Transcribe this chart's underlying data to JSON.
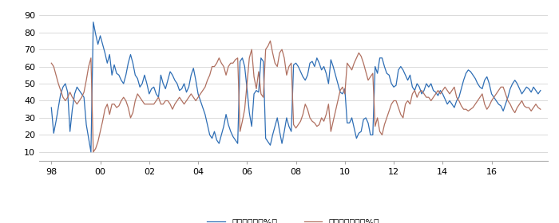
{
  "xlim_start": 1997.5,
  "xlim_end": 2018.3,
  "ylim": [
    5,
    95
  ],
  "yticks": [
    10,
    20,
    30,
    40,
    50,
    60,
    70,
    80,
    90
  ],
  "xtick_years": [
    1998,
    2000,
    2002,
    2004,
    2006,
    2008,
    2010,
    2012,
    2014,
    2016
  ],
  "xtick_labels": [
    "98",
    "00",
    "02",
    "04",
    "06",
    "08",
    "10",
    "12",
    "14",
    "16"
  ],
  "line1_color": "#2e6eb5",
  "line2_color": "#b07060",
  "line1_label": "内閣支持率（%）",
  "line2_label": "内閣不支持率（%）",
  "line_width": 0.9,
  "bg_color": "#ffffff",
  "grid_color": "#cccccc",
  "support": [
    36,
    21,
    28,
    36,
    44,
    48,
    50,
    45,
    22,
    35,
    44,
    48,
    46,
    44,
    42,
    26,
    18,
    10,
    86,
    79,
    73,
    78,
    73,
    68,
    62,
    67,
    55,
    61,
    56,
    55,
    52,
    50,
    55,
    62,
    67,
    62,
    55,
    53,
    48,
    50,
    55,
    50,
    44,
    47,
    48,
    44,
    42,
    55,
    50,
    47,
    52,
    57,
    55,
    52,
    50,
    46,
    47,
    50,
    45,
    48,
    55,
    59,
    52,
    44,
    40,
    36,
    32,
    26,
    20,
    18,
    22,
    17,
    15,
    20,
    25,
    32,
    26,
    22,
    19,
    17,
    15,
    63,
    65,
    60,
    47,
    33,
    25,
    44,
    46,
    45,
    65,
    63,
    18,
    16,
    14,
    20,
    25,
    30,
    22,
    15,
    22,
    30,
    25,
    22,
    61,
    62,
    60,
    57,
    54,
    52,
    55,
    62,
    63,
    60,
    65,
    62,
    58,
    60,
    56,
    50,
    64,
    60,
    55,
    50,
    45,
    44,
    47,
    27,
    27,
    30,
    24,
    18,
    21,
    22,
    29,
    30,
    27,
    20,
    20,
    60,
    56,
    65,
    65,
    60,
    56,
    55,
    50,
    48,
    49,
    58,
    60,
    58,
    55,
    52,
    55,
    48,
    46,
    50,
    48,
    44,
    46,
    50,
    48,
    50,
    46,
    45,
    43,
    46,
    44,
    41,
    38,
    40,
    38,
    36,
    40,
    42,
    47,
    52,
    56,
    58,
    57,
    55,
    53,
    50,
    48,
    47,
    52,
    54,
    50,
    44,
    42,
    40,
    38,
    37,
    34,
    38,
    42,
    47,
    50,
    52,
    50,
    47,
    44,
    46,
    48,
    47,
    45,
    48,
    46,
    44,
    46
  ],
  "disapprove": [
    62,
    60,
    55,
    50,
    46,
    42,
    40,
    42,
    45,
    42,
    40,
    38,
    40,
    42,
    45,
    52,
    60,
    65,
    10,
    12,
    16,
    22,
    28,
    35,
    38,
    32,
    38,
    38,
    36,
    37,
    40,
    42,
    40,
    36,
    30,
    33,
    40,
    44,
    42,
    40,
    38,
    38,
    38,
    38,
    38,
    40,
    42,
    38,
    38,
    40,
    40,
    38,
    35,
    38,
    40,
    42,
    40,
    38,
    40,
    42,
    44,
    42,
    40,
    42,
    44,
    46,
    48,
    52,
    55,
    60,
    60,
    62,
    65,
    62,
    60,
    55,
    60,
    62,
    62,
    64,
    65,
    22,
    28,
    35,
    50,
    65,
    70,
    54,
    47,
    57,
    44,
    42,
    70,
    72,
    75,
    68,
    62,
    60,
    68,
    70,
    65,
    55,
    60,
    62,
    26,
    24,
    26,
    28,
    32,
    38,
    35,
    30,
    28,
    27,
    25,
    26,
    30,
    28,
    32,
    38,
    22,
    28,
    34,
    40,
    46,
    48,
    44,
    62,
    60,
    58,
    62,
    65,
    68,
    66,
    62,
    57,
    52,
    54,
    56,
    25,
    30,
    22,
    20,
    26,
    30,
    34,
    38,
    40,
    40,
    36,
    32,
    30,
    38,
    40,
    38,
    44,
    46,
    42,
    45,
    46,
    44,
    42,
    42,
    40,
    42,
    44,
    46,
    44,
    46,
    48,
    46,
    44,
    46,
    48,
    42,
    40,
    37,
    35,
    35,
    34,
    35,
    36,
    38,
    40,
    42,
    44,
    38,
    35,
    37,
    40,
    42,
    44,
    46,
    48,
    48,
    44,
    40,
    38,
    35,
    33,
    36,
    38,
    40,
    37,
    36,
    36,
    34,
    36,
    38,
    36,
    35
  ]
}
